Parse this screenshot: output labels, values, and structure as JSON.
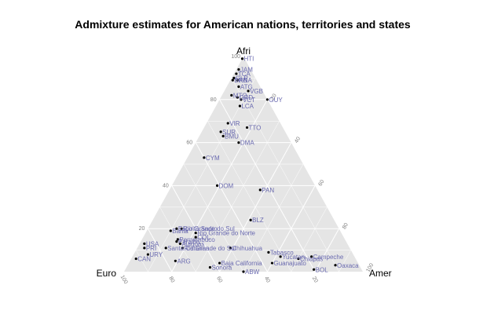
{
  "chart_data": {
    "type": "scatter",
    "subtype": "ternary",
    "title": "Admixture estimates for American nations, territories and states",
    "vertices": {
      "top": "Afri",
      "left": "Euro",
      "right": "Amer"
    },
    "ticks": [
      20,
      40,
      60,
      80,
      100
    ],
    "grid": true,
    "panel_color": "#e5e5e5",
    "point_color": "#000000",
    "label_color": "#6a6ab0",
    "points": [
      {
        "label": "HTI",
        "afri": 99,
        "euro": 1,
        "amer": 0
      },
      {
        "label": "JAM",
        "afri": 94,
        "euro": 5,
        "amer": 1
      },
      {
        "label": "TCA",
        "afri": 92,
        "euro": 7,
        "amer": 1
      },
      {
        "label": "GLP",
        "afri": 90,
        "euro": 9,
        "amer": 1
      },
      {
        "label": "BRB",
        "afri": 89,
        "euro": 10,
        "amer": 1
      },
      {
        "label": "KNA",
        "afri": 89,
        "euro": 8,
        "amer": 3
      },
      {
        "label": "ATG",
        "afri": 86,
        "euro": 9,
        "amer": 5
      },
      {
        "label": "VGB",
        "afri": 84,
        "euro": 6,
        "amer": 10
      },
      {
        "label": "MTQ",
        "afri": 82,
        "euro": 14,
        "amer": 4
      },
      {
        "label": "GRD",
        "afri": 81,
        "euro": 12,
        "amer": 7
      },
      {
        "label": "VCT",
        "afri": 80,
        "euro": 11,
        "amer": 9
      },
      {
        "label": "LCA",
        "afri": 77,
        "euro": 13,
        "amer": 10
      },
      {
        "label": "GUY",
        "afri": 80,
        "euro": 0,
        "amer": 20
      },
      {
        "label": "VIR",
        "afri": 69,
        "euro": 22,
        "amer": 9
      },
      {
        "label": "TTO",
        "afri": 67,
        "euro": 15,
        "amer": 18
      },
      {
        "label": "SUR",
        "afri": 65,
        "euro": 27,
        "amer": 8
      },
      {
        "label": "BMU",
        "afri": 63,
        "euro": 27,
        "amer": 10
      },
      {
        "label": "DMA",
        "afri": 60,
        "euro": 22,
        "amer": 18
      },
      {
        "label": "CYM",
        "afri": 53,
        "euro": 40,
        "amer": 7
      },
      {
        "label": "DOM",
        "afri": 40,
        "euro": 41,
        "amer": 19
      },
      {
        "label": "PAN",
        "afri": 38,
        "euro": 24,
        "amer": 38
      },
      {
        "label": "BLZ",
        "afri": 24,
        "euro": 35,
        "amer": 41
      },
      {
        "label": "Espirito Santo",
        "afri": 20,
        "euro": 68,
        "amer": 12
      },
      {
        "label": "Rio Grande do Sul",
        "afri": 20,
        "euro": 66,
        "amer": 14
      },
      {
        "label": "Bahia",
        "afri": 19,
        "euro": 71,
        "amer": 10
      },
      {
        "label": "Rio Grande do Norte",
        "afri": 18,
        "euro": 61,
        "amer": 21
      },
      {
        "label": "COL",
        "afri": 16,
        "euro": 62,
        "amer": 22
      },
      {
        "label": "Pernambuco",
        "afri": 15,
        "euro": 70,
        "amer": 15
      },
      {
        "label": "Paraiba",
        "afri": 14,
        "euro": 71,
        "amer": 15
      },
      {
        "label": "Alagoas",
        "afri": 13,
        "euro": 70,
        "amer": 17
      },
      {
        "label": "USA",
        "afri": 13,
        "euro": 85,
        "amer": 2
      },
      {
        "label": "PRI",
        "afri": 11,
        "euro": 86,
        "amer": 3
      },
      {
        "label": "Santa Catarina",
        "afri": 11,
        "euro": 77,
        "amer": 12
      },
      {
        "label": "Rio Grande do Sul",
        "afri": 11,
        "euro": 70,
        "amer": 19
      },
      {
        "label": "Chihuahua",
        "afri": 11,
        "euro": 50,
        "amer": 39
      },
      {
        "label": "URY",
        "afri": 8,
        "euro": 86,
        "amer": 6
      },
      {
        "label": "CAN",
        "afri": 6,
        "euro": 92,
        "amer": 2
      },
      {
        "label": "ARG",
        "afri": 5,
        "euro": 76,
        "amer": 19
      },
      {
        "label": "Sonora",
        "afri": 2,
        "euro": 63,
        "amer": 35
      },
      {
        "label": "Baja California",
        "afri": 4,
        "euro": 58,
        "amer": 38
      },
      {
        "label": "ABW",
        "afri": 0,
        "euro": 50,
        "amer": 50
      },
      {
        "label": "Guanajuato",
        "afri": 4,
        "euro": 36,
        "amer": 60
      },
      {
        "label": "Yucatan",
        "afri": 7,
        "euro": 31,
        "amer": 62
      },
      {
        "label": "Campeche",
        "afri": 7,
        "euro": 18,
        "amer": 75
      },
      {
        "label": "Chiapas",
        "afri": 6,
        "euro": 24,
        "amer": 70
      },
      {
        "label": "BOL",
        "afri": 1,
        "euro": 20,
        "amer": 79
      },
      {
        "label": "Oaxaca",
        "afri": 3,
        "euro": 10,
        "amer": 87
      },
      {
        "label": "Tabasco",
        "afri": 9,
        "euro": 35,
        "amer": 56
      }
    ]
  }
}
